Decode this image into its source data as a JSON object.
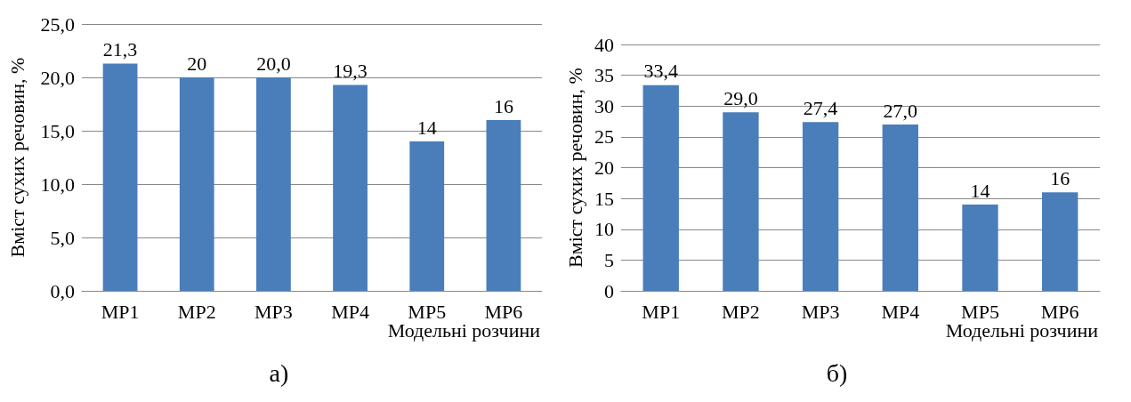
{
  "chart_data": [
    {
      "type": "bar",
      "ylabel": "Вміст сухих речовин, %",
      "xlabel": "Модельні розчини",
      "categories": [
        "МР1",
        "МР2",
        "МР3",
        "МР4",
        "МР5",
        "МР6"
      ],
      "values": [
        21.3,
        20,
        20.0,
        19.3,
        14,
        16
      ],
      "value_labels": [
        "21,3",
        "20",
        "20,0",
        "19,3",
        "14",
        "16"
      ],
      "color": "#4a7ebb",
      "ylim": [
        0,
        25
      ],
      "yticks": [
        {
          "value": 0,
          "label": "0,0"
        },
        {
          "value": 5,
          "label": "5,0"
        },
        {
          "value": 10,
          "label": "10,0"
        },
        {
          "value": 15,
          "label": "15,0"
        },
        {
          "value": 20,
          "label": "20,0"
        },
        {
          "value": 25,
          "label": "25,0"
        }
      ],
      "grid": "y",
      "annotations": [
        "а)"
      ]
    },
    {
      "type": "bar",
      "ylabel": "Вміст сухих речовин, %",
      "xlabel": "Модельні розчини",
      "categories": [
        "МР1",
        "МР2",
        "МР3",
        "МР4",
        "МР5",
        "МР6"
      ],
      "values": [
        33.4,
        29.0,
        27.4,
        27.0,
        14,
        16
      ],
      "value_labels": [
        "33,4",
        "29,0",
        "27,4",
        "27,0",
        "14",
        "16"
      ],
      "color": "#4a7ebb",
      "ylim": [
        0,
        40
      ],
      "yticks": [
        0,
        5,
        10,
        15,
        20,
        25,
        30,
        35,
        40
      ],
      "grid": "y",
      "annotations": [
        "б)"
      ]
    }
  ]
}
